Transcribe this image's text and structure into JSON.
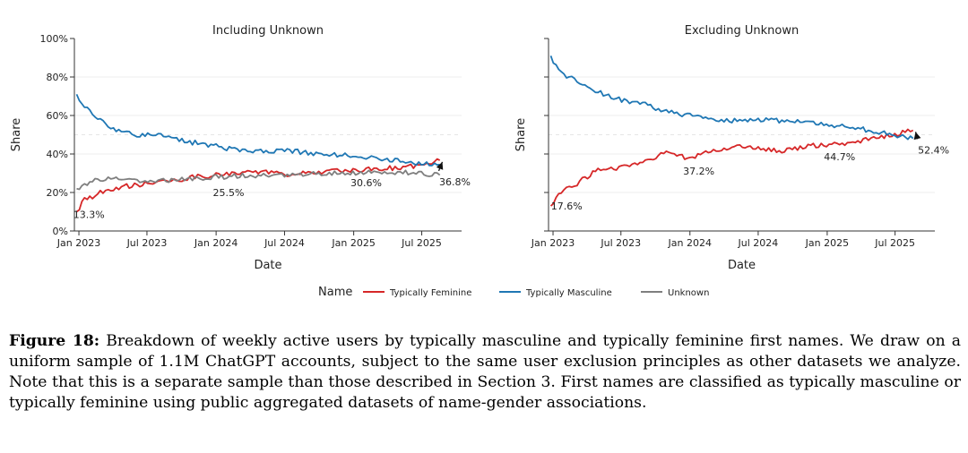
{
  "legend": {
    "title": "Name",
    "items": [
      {
        "label": "Typically Feminine",
        "color": "#d62728"
      },
      {
        "label": "Typically Masculine",
        "color": "#1f77b4"
      },
      {
        "label": "Unknown",
        "color": "#7f7f7f"
      }
    ]
  },
  "chart_data": [
    {
      "type": "line",
      "title": "Including Unknown",
      "xlabel": "Date",
      "ylabel": "Share",
      "x_ticks": [
        "Jan 2023",
        "Jul 2023",
        "Jan 2024",
        "Jul 2024",
        "Jan 2025",
        "Jul 2025"
      ],
      "x_range": [
        "2022-12-20",
        "2025-10-15"
      ],
      "y_ticks": [
        "0%",
        "20%",
        "40%",
        "60%",
        "80%",
        "100%"
      ],
      "ylim": [
        0,
        100
      ],
      "grid": true,
      "series": [
        {
          "name": "Typically Feminine",
          "color": "#d62728",
          "points": [
            [
              "2022-12-26",
              10
            ],
            [
              "2023-01-15",
              16
            ],
            [
              "2023-03-01",
              20
            ],
            [
              "2023-05-01",
              23
            ],
            [
              "2023-07-01",
              24.5
            ],
            [
              "2023-09-01",
              26
            ],
            [
              "2023-11-01",
              28
            ],
            [
              "2024-01-01",
              29
            ],
            [
              "2024-03-01",
              30
            ],
            [
              "2024-05-01",
              31
            ],
            [
              "2024-07-01",
              29.5
            ],
            [
              "2024-09-01",
              30
            ],
            [
              "2024-11-01",
              31
            ],
            [
              "2025-01-01",
              31.5
            ],
            [
              "2025-03-01",
              32
            ],
            [
              "2025-05-01",
              33
            ],
            [
              "2025-07-01",
              34
            ],
            [
              "2025-08-20",
              36.8
            ]
          ]
        },
        {
          "name": "Typically Masculine",
          "color": "#1f77b4",
          "points": [
            [
              "2022-12-26",
              71
            ],
            [
              "2023-01-15",
              65
            ],
            [
              "2023-02-15",
              60
            ],
            [
              "2023-04-01",
              53
            ],
            [
              "2023-06-01",
              50
            ],
            [
              "2023-08-01",
              50
            ],
            [
              "2023-10-01",
              47
            ],
            [
              "2024-01-01",
              44
            ],
            [
              "2024-04-01",
              41
            ],
            [
              "2024-07-01",
              42
            ],
            [
              "2024-10-01",
              40
            ],
            [
              "2025-01-01",
              39
            ],
            [
              "2025-04-01",
              37
            ],
            [
              "2025-07-01",
              35
            ],
            [
              "2025-08-20",
              34.5
            ]
          ]
        },
        {
          "name": "Unknown",
          "color": "#7f7f7f",
          "points": [
            [
              "2022-12-26",
              22
            ],
            [
              "2023-02-01",
              26
            ],
            [
              "2023-04-01",
              28
            ],
            [
              "2023-06-01",
              26.5
            ],
            [
              "2023-08-01",
              26
            ],
            [
              "2023-10-01",
              27
            ],
            [
              "2024-01-01",
              28
            ],
            [
              "2024-04-01",
              29
            ],
            [
              "2024-07-01",
              29
            ],
            [
              "2024-10-01",
              30
            ],
            [
              "2025-01-01",
              30
            ],
            [
              "2025-04-01",
              30.5
            ],
            [
              "2025-07-01",
              30
            ],
            [
              "2025-08-20",
              29
            ]
          ]
        }
      ],
      "annotations": [
        {
          "text": "13.3%",
          "x": "2022-12-30",
          "y": 13.3
        },
        {
          "text": "25.5%",
          "x": "2024-01-15",
          "y": 25.5
        },
        {
          "text": "30.6%",
          "x": "2025-01-15",
          "y": 30.6
        },
        {
          "text": "36.8%",
          "x": "2025-08-20",
          "y": 36.8
        }
      ]
    },
    {
      "type": "line",
      "title": "Excluding Unknown",
      "xlabel": "Date",
      "ylabel": "Share",
      "x_ticks": [
        "Jan 2023",
        "Jul 2023",
        "Jan 2024",
        "Jul 2024",
        "Jan 2025",
        "Jul 2025"
      ],
      "x_range": [
        "2022-12-20",
        "2025-10-15"
      ],
      "y_ticks": [
        "",
        "",
        "",
        "",
        "",
        ""
      ],
      "ylim": [
        0,
        100
      ],
      "grid": true,
      "series": [
        {
          "name": "Typically Feminine",
          "color": "#d62728",
          "points": [
            [
              "2022-12-26",
              13
            ],
            [
              "2023-01-15",
              19
            ],
            [
              "2023-03-01",
              24
            ],
            [
              "2023-05-01",
              32
            ],
            [
              "2023-07-01",
              33
            ],
            [
              "2023-09-01",
              36
            ],
            [
              "2023-11-01",
              41
            ],
            [
              "2024-01-01",
              37.2
            ],
            [
              "2024-03-01",
              42
            ],
            [
              "2024-05-01",
              44
            ],
            [
              "2024-07-01",
              43
            ],
            [
              "2024-09-01",
              41
            ],
            [
              "2024-11-01",
              44
            ],
            [
              "2025-01-01",
              44.7
            ],
            [
              "2025-03-01",
              46
            ],
            [
              "2025-05-01",
              48
            ],
            [
              "2025-07-01",
              50
            ],
            [
              "2025-08-20",
              52.4
            ]
          ]
        },
        {
          "name": "Typically Masculine",
          "color": "#1f77b4",
          "points": [
            [
              "2022-12-26",
              91
            ],
            [
              "2023-01-15",
              83
            ],
            [
              "2023-03-01",
              78
            ],
            [
              "2023-05-01",
              72
            ],
            [
              "2023-07-01",
              68
            ],
            [
              "2023-09-01",
              66
            ],
            [
              "2023-11-01",
              62
            ],
            [
              "2024-01-01",
              60
            ],
            [
              "2024-04-01",
              57
            ],
            [
              "2024-07-01",
              58
            ],
            [
              "2024-10-01",
              57
            ],
            [
              "2025-01-01",
              55
            ],
            [
              "2025-04-01",
              53
            ],
            [
              "2025-07-01",
              50
            ],
            [
              "2025-08-20",
              48
            ]
          ]
        }
      ],
      "annotations": [
        {
          "text": "17.6%",
          "x": "2022-12-30",
          "y": 17.6
        },
        {
          "text": "37.2%",
          "x": "2024-01-15",
          "y": 37.2
        },
        {
          "text": "44.7%",
          "x": "2025-01-15",
          "y": 44.7
        },
        {
          "text": "52.4%",
          "x": "2025-08-20",
          "y": 52.4
        }
      ]
    }
  ],
  "caption": {
    "label": "Figure 18:",
    "text": "Breakdown of weekly active users by typically masculine and typically feminine first names. We draw on a uniform sample of 1.1M ChatGPT accounts, subject to the same user exclusion principles as other datasets we analyze. Note that this is a separate sample than those described in Section 3. First names are classified as typically masculine or typically feminine using public aggregated datasets of name-gender associations."
  }
}
